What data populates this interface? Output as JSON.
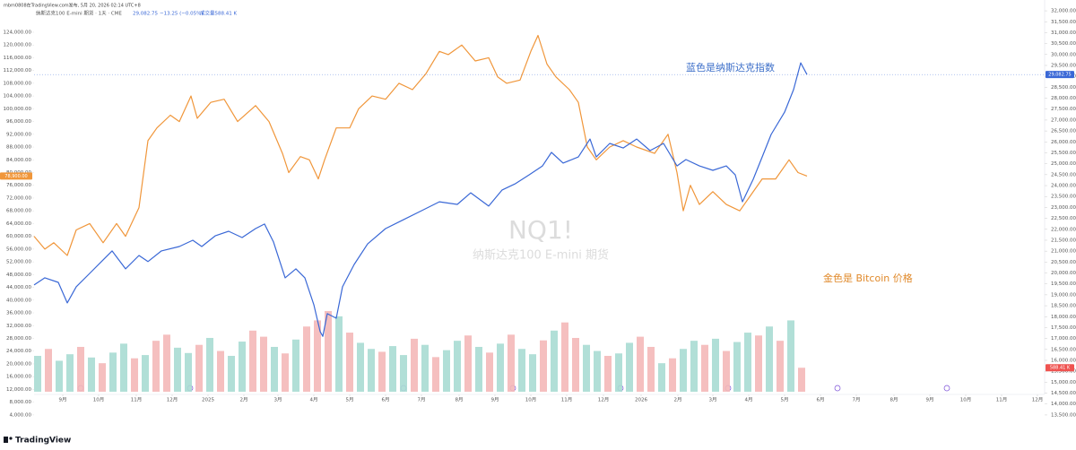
{
  "header": "mbm0808在TradingView.com发布, 5月 20, 2026 02:14 UTC+8",
  "chart_data": {
    "type": "line",
    "legend_text": "纳斯达克100 E-mini 期货 · 1天 · CME",
    "legend_price": "29,082.75",
    "legend_change": "−13.25 (−0.05%)",
    "legend_volume": "成交量588.41 K",
    "watermark": "NQ1!",
    "watermark_subtitle": "纳斯达克100 E-mini 期货",
    "annotations": [
      "蓝色是纳斯达克指数",
      "金色是 Bitcoin 价格"
    ],
    "logo": "TradingView",
    "xlim": [
      0,
      1127
    ],
    "xticks": [
      {
        "value": 32,
        "label": "9月"
      },
      {
        "value": 72,
        "label": "10月"
      },
      {
        "value": 114,
        "label": "11月"
      },
      {
        "value": 154,
        "label": "12月"
      },
      {
        "value": 194,
        "label": "2025"
      },
      {
        "value": 234,
        "label": "2月"
      },
      {
        "value": 272,
        "label": "3月"
      },
      {
        "value": 312,
        "label": "4月"
      },
      {
        "value": 352,
        "label": "5月"
      },
      {
        "value": 392,
        "label": "6月"
      },
      {
        "value": 432,
        "label": "7月"
      },
      {
        "value": 474,
        "label": "8月"
      },
      {
        "value": 514,
        "label": "9月"
      },
      {
        "value": 554,
        "label": "10月"
      },
      {
        "value": 594,
        "label": "11月"
      },
      {
        "value": 635,
        "label": "12月"
      },
      {
        "value": 677,
        "label": "2026"
      },
      {
        "value": 718,
        "label": "2月"
      },
      {
        "value": 757,
        "label": "3月"
      },
      {
        "value": 797,
        "label": "4月"
      },
      {
        "value": 837,
        "label": "5月"
      },
      {
        "value": 877,
        "label": "6月"
      },
      {
        "value": 917,
        "label": "7月"
      },
      {
        "value": 959,
        "label": "8月"
      },
      {
        "value": 999,
        "label": "9月"
      },
      {
        "value": 1039,
        "label": "10月"
      },
      {
        "value": 1079,
        "label": "11月"
      },
      {
        "value": 1119,
        "label": "12月"
      }
    ],
    "ylim": [
      2000,
      132700
    ],
    "yticks": [
      {
        "value": 4000,
        "label": "4,000.00"
      },
      {
        "value": 8000,
        "label": "8,000.00"
      },
      {
        "value": 12000,
        "label": "12,000.00"
      },
      {
        "value": 16000,
        "label": "16,000.00"
      },
      {
        "value": 20000,
        "label": "20,000.00"
      },
      {
        "value": 24000,
        "label": "24,000.00"
      },
      {
        "value": 28000,
        "label": "28,000.00"
      },
      {
        "value": 32000,
        "label": "32,000.00"
      },
      {
        "value": 36000,
        "label": "36,000.00"
      },
      {
        "value": 40000,
        "label": "40,000.00"
      },
      {
        "value": 44000,
        "label": "44,000.00"
      },
      {
        "value": 48000,
        "label": "48,000.00"
      },
      {
        "value": 52000,
        "label": "52,000.00"
      },
      {
        "value": 56000,
        "label": "56,000.00"
      },
      {
        "value": 60000,
        "label": "60,000.00"
      },
      {
        "value": 64000,
        "label": "64,000.00"
      },
      {
        "value": 68000,
        "label": "68,000.00"
      },
      {
        "value": 72000,
        "label": "72,000.00"
      },
      {
        "value": 76000,
        "label": "76,000.00"
      },
      {
        "value": 80000,
        "label": "80,000.00"
      },
      {
        "value": 84000,
        "label": "84,000.00"
      },
      {
        "value": 88000,
        "label": "88,000.00"
      },
      {
        "value": 92000,
        "label": "92,000.00"
      },
      {
        "value": 96000,
        "label": "96,000.00"
      },
      {
        "value": 100000,
        "label": "100,000.00"
      },
      {
        "value": 104000,
        "label": "104,000.00"
      },
      {
        "value": 108000,
        "label": "108,000.00"
      },
      {
        "value": 112000,
        "label": "112,000.00"
      },
      {
        "value": 116000,
        "label": "116,000.00"
      },
      {
        "value": 120000,
        "label": "120,000.00"
      },
      {
        "value": 124000,
        "label": "124,000.00"
      }
    ],
    "y2lim": [
      13210,
      32290
    ],
    "y2ticks": [
      {
        "value": 13500,
        "label": "13,500.00"
      },
      {
        "value": 14000,
        "label": "14,000.00"
      },
      {
        "value": 14500,
        "label": "14,500.00"
      },
      {
        "value": 15000,
        "label": "15,000.00"
      },
      {
        "value": 15500,
        "label": "15,500.00"
      },
      {
        "value": 16000,
        "label": "16,000.00"
      },
      {
        "value": 16500,
        "label": "16,500.00"
      },
      {
        "value": 17000,
        "label": "17,000.00"
      },
      {
        "value": 17500,
        "label": "17,500.00"
      },
      {
        "value": 18000,
        "label": "18,000.00"
      },
      {
        "value": 18500,
        "label": "18,500.00"
      },
      {
        "value": 19000,
        "label": "19,000.00"
      },
      {
        "value": 19500,
        "label": "19,500.00"
      },
      {
        "value": 20000,
        "label": "20,000.00"
      },
      {
        "value": 20500,
        "label": "20,500.00"
      },
      {
        "value": 21000,
        "label": "21,000.00"
      },
      {
        "value": 21500,
        "label": "21,500.00"
      },
      {
        "value": 22000,
        "label": "22,000.00"
      },
      {
        "value": 22500,
        "label": "22,500.00"
      },
      {
        "value": 23000,
        "label": "23,000.00"
      },
      {
        "value": 23500,
        "label": "23,500.00"
      },
      {
        "value": 24000,
        "label": "24,000.00"
      },
      {
        "value": 24500,
        "label": "24,500.00"
      },
      {
        "value": 25000,
        "label": "25,000.00"
      },
      {
        "value": 25500,
        "label": "25,500.00"
      },
      {
        "value": 26000,
        "label": "26,000.00"
      },
      {
        "value": 26500,
        "label": "26,500.00"
      },
      {
        "value": 27000,
        "label": "27,000.00"
      },
      {
        "value": 27500,
        "label": "27,500.00"
      },
      {
        "value": 28000,
        "label": "28,000.00"
      },
      {
        "value": 28500,
        "label": "28,500.00"
      },
      {
        "value": 29000,
        "label": "29,000.00"
      },
      {
        "value": 29500,
        "label": "29,500.00"
      },
      {
        "value": 30000,
        "label": "30,000.00"
      },
      {
        "value": 30500,
        "label": "30,500.00"
      },
      {
        "value": 31000,
        "label": "31,000.00"
      },
      {
        "value": 31500,
        "label": "31,500.00"
      },
      {
        "value": 32000,
        "label": "32,000.00"
      }
    ],
    "series": [
      {
        "name": "Bitcoin",
        "color": "#f0963a",
        "axis": "y",
        "x": [
          0,
          12,
          22,
          37,
          47,
          62,
          77,
          92,
          102,
          117,
          127,
          137,
          152,
          162,
          175,
          182,
          197,
          212,
          227,
          247,
          262,
          277,
          284,
          297,
          307,
          317,
          324,
          337,
          352,
          362,
          377,
          392,
          407,
          422,
          437,
          452,
          462,
          477,
          492,
          507,
          517,
          527,
          542,
          554,
          562,
          572,
          582,
          597,
          607,
          617,
          627,
          642,
          657,
          672,
          692,
          707,
          717,
          724,
          732,
          742,
          757,
          772,
          787,
          797,
          812,
          827,
          842,
          852,
          862
        ],
        "values": [
          60000,
          56000,
          58000,
          54000,
          62000,
          64000,
          58000,
          64000,
          60000,
          69000,
          90000,
          94000,
          98000,
          96000,
          104000,
          97000,
          102000,
          103000,
          96000,
          101000,
          96000,
          86000,
          80000,
          85000,
          84000,
          78000,
          84000,
          94000,
          94000,
          100000,
          104000,
          103000,
          108000,
          106000,
          111000,
          118000,
          117000,
          120000,
          115000,
          116000,
          110000,
          108000,
          109000,
          118000,
          123000,
          114000,
          110000,
          106000,
          102000,
          88000,
          84000,
          88000,
          90000,
          88000,
          86000,
          92000,
          80000,
          68000,
          76000,
          70000,
          74000,
          70000,
          68000,
          72000,
          78000,
          78000,
          84000,
          80000,
          78900
        ],
        "last_label": "78,900.00"
      },
      {
        "name": "NQ1!",
        "color": "#3a68d6",
        "axis": "y2",
        "x": [
          0,
          12,
          27,
          37,
          47,
          62,
          77,
          87,
          102,
          117,
          127,
          142,
          162,
          177,
          187,
          202,
          217,
          232,
          247,
          257,
          267,
          280,
          292,
          302,
          312,
          319,
          322,
          327,
          337,
          344,
          357,
          372,
          392,
          412,
          432,
          452,
          472,
          487,
          507,
          522,
          537,
          552,
          567,
          577,
          590,
          607,
          620,
          627,
          642,
          657,
          672,
          687,
          702,
          717,
          727,
          742,
          757,
          772,
          782,
          790,
          802,
          812,
          822,
          837,
          847,
          855,
          862
        ],
        "values": [
          19450,
          19780,
          19570,
          18630,
          19370,
          19980,
          20600,
          21010,
          20190,
          20800,
          20520,
          21010,
          21210,
          21500,
          21210,
          21700,
          21910,
          21620,
          22030,
          22240,
          21420,
          19780,
          20190,
          19780,
          18550,
          17320,
          17100,
          18140,
          17930,
          19370,
          20390,
          21330,
          22030,
          22440,
          22850,
          23260,
          23140,
          23670,
          23060,
          23800,
          24090,
          24490,
          24900,
          25520,
          25030,
          25310,
          26130,
          25310,
          25930,
          25720,
          26130,
          25600,
          25930,
          24900,
          25190,
          24900,
          24700,
          24900,
          24490,
          23260,
          24290,
          25310,
          26340,
          27360,
          28390,
          29620,
          29082.75
        ],
        "last_label": "29,082.75"
      }
    ],
    "volume": {
      "vlim": [
        0,
        9500
      ],
      "x": [
        4,
        16,
        28,
        40,
        52,
        64,
        76,
        88,
        100,
        112,
        124,
        136,
        148,
        160,
        172,
        184,
        196,
        208,
        220,
        232,
        244,
        256,
        268,
        280,
        292,
        304,
        316,
        328,
        340,
        352,
        364,
        376,
        388,
        400,
        412,
        424,
        436,
        448,
        460,
        472,
        484,
        496,
        508,
        520,
        532,
        544,
        556,
        568,
        580,
        592,
        604,
        616,
        628,
        640,
        652,
        664,
        676,
        688,
        700,
        712,
        724,
        736,
        748,
        760,
        772,
        784,
        796,
        808,
        820,
        832,
        844,
        856
      ],
      "values": [
        880,
        1050,
        760,
        920,
        1100,
        840,
        700,
        960,
        1180,
        820,
        900,
        1250,
        1400,
        1080,
        950,
        1150,
        1320,
        1000,
        880,
        1230,
        1500,
        1350,
        1100,
        940,
        1280,
        1600,
        1750,
        1980,
        1850,
        1450,
        1200,
        1050,
        980,
        1120,
        900,
        1300,
        1150,
        850,
        1020,
        1250,
        1380,
        1100,
        960,
        1180,
        1400,
        1050,
        920,
        1260,
        1500,
        1700,
        1320,
        1150,
        1000,
        880,
        940,
        1200,
        1350,
        1100,
        700,
        820,
        1050,
        1250,
        1150,
        1300,
        1000,
        1220,
        1450,
        1380,
        1600,
        1250,
        1750,
        588.41
      ],
      "colors": [
        "#a8dcd3",
        "#f4b8b8",
        "#a8dcd3",
        "#a8dcd3",
        "#f4b8b8",
        "#a8dcd3",
        "#f4b8b8",
        "#a8dcd3",
        "#a8dcd3",
        "#f4b8b8",
        "#a8dcd3",
        "#f4b8b8",
        "#f4b8b8",
        "#a8dcd3",
        "#a8dcd3",
        "#f4b8b8",
        "#a8dcd3",
        "#f4b8b8",
        "#a8dcd3",
        "#a8dcd3",
        "#f4b8b8",
        "#f4b8b8",
        "#a8dcd3",
        "#f4b8b8",
        "#a8dcd3",
        "#f4b8b8",
        "#f4b8b8",
        "#f4b8b8",
        "#a8dcd3",
        "#f4b8b8",
        "#a8dcd3",
        "#a8dcd3",
        "#f4b8b8",
        "#a8dcd3",
        "#a8dcd3",
        "#f4b8b8",
        "#a8dcd3",
        "#f4b8b8",
        "#a8dcd3",
        "#a8dcd3",
        "#f4b8b8",
        "#a8dcd3",
        "#f4b8b8",
        "#a8dcd3",
        "#f4b8b8",
        "#a8dcd3",
        "#a8dcd3",
        "#f4b8b8",
        "#a8dcd3",
        "#f4b8b8",
        "#f4b8b8",
        "#a8dcd3",
        "#a8dcd3",
        "#f4b8b8",
        "#a8dcd3",
        "#a8dcd3",
        "#f4b8b8",
        "#f4b8b8",
        "#a8dcd3",
        "#f4b8b8",
        "#a8dcd3",
        "#a8dcd3",
        "#f4b8b8",
        "#a8dcd3",
        "#f4b8b8",
        "#a8dcd3",
        "#a8dcd3",
        "#f4b8b8",
        "#a8dcd3",
        "#f4b8b8",
        "#a8dcd3",
        "#f4b8b8"
      ],
      "last_label": "588.41 K"
    }
  }
}
